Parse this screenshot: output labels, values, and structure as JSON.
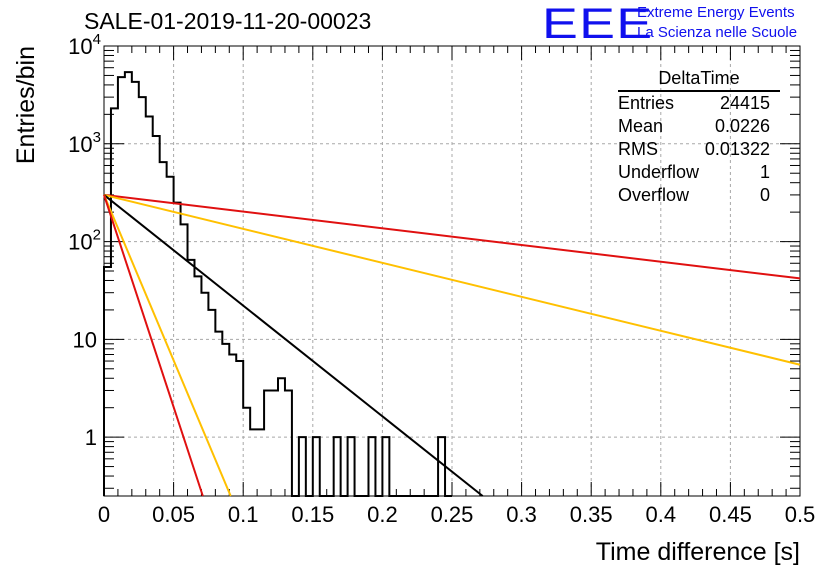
{
  "header": {
    "run_title": "SALE-01-2019-11-20-00023",
    "logo_text": "EEE",
    "logo_line1": "Extreme Energy Events",
    "logo_line2": "La Scienza nelle Scuole",
    "logo_color": "#1010ee"
  },
  "stats": {
    "title": "DeltaTime",
    "rows": [
      {
        "label": "Entries",
        "value": "24415"
      },
      {
        "label": "Mean",
        "value": "0.0226"
      },
      {
        "label": "RMS",
        "value": "0.01322"
      },
      {
        "label": "Underflow",
        "value": "1"
      },
      {
        "label": "Overflow",
        "value": "0"
      }
    ]
  },
  "chart_data": {
    "type": "histogram",
    "title": "SALE-01-2019-11-20-00023",
    "xlabel": "Time difference [s]",
    "ylabel": "Entries/bin",
    "xlim": [
      0,
      0.5
    ],
    "ylim": [
      0.25,
      10000
    ],
    "yscale": "log",
    "grid": true,
    "x_ticks": [
      "0",
      "0.05",
      "0.1",
      "0.15",
      "0.2",
      "0.25",
      "0.3",
      "0.35",
      "0.4",
      "0.45",
      "0.5"
    ],
    "y_ticks": [
      "1",
      "10",
      "10^2",
      "10^3",
      "10^4"
    ],
    "histogram": {
      "bin_width": 0.005,
      "bin_starts": [
        0.0,
        0.005,
        0.01,
        0.015,
        0.02,
        0.025,
        0.03,
        0.035,
        0.04,
        0.045,
        0.05,
        0.055,
        0.06,
        0.065,
        0.07,
        0.075,
        0.08,
        0.085,
        0.09,
        0.095,
        0.1,
        0.105,
        0.11,
        0.115,
        0.12,
        0.125,
        0.13,
        0.135,
        0.14,
        0.145,
        0.15,
        0.155,
        0.16,
        0.165,
        0.17,
        0.175,
        0.18,
        0.185,
        0.19,
        0.195,
        0.2,
        0.205,
        0.21,
        0.215,
        0.22,
        0.225,
        0.23,
        0.235,
        0.24,
        0.245
      ],
      "counts": [
        55,
        2300,
        4800,
        5400,
        4300,
        3000,
        1900,
        1200,
        650,
        460,
        250,
        150,
        65,
        44,
        30,
        20,
        12,
        9,
        7,
        6,
        2.0,
        1.2,
        1.2,
        3,
        3,
        4,
        3,
        0,
        1,
        0,
        1,
        0,
        0,
        1,
        0,
        1,
        0,
        0,
        1,
        0,
        1,
        0,
        0,
        0,
        0,
        0,
        0,
        0,
        1,
        0
      ]
    },
    "lines": [
      {
        "color": "#e01010",
        "x": [
          0.0,
          0.5
        ],
        "y": [
          300,
          42
        ]
      },
      {
        "color": "#ffc000",
        "x": [
          0.0,
          0.5
        ],
        "y": [
          300,
          5.5
        ]
      },
      {
        "color": "#000000",
        "x": [
          0.0,
          0.272
        ],
        "y": [
          300,
          0.25
        ]
      },
      {
        "color": "#ffc000",
        "x": [
          0.0,
          0.091
        ],
        "y": [
          300,
          0.25
        ]
      },
      {
        "color": "#e01010",
        "x": [
          0.0,
          0.071
        ],
        "y": [
          300,
          0.25
        ]
      }
    ]
  }
}
